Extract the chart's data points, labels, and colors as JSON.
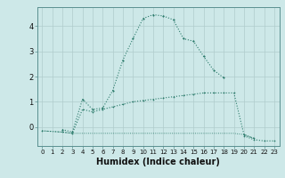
{
  "x": [
    0,
    1,
    2,
    3,
    4,
    5,
    6,
    7,
    8,
    9,
    10,
    11,
    12,
    13,
    14,
    15,
    16,
    17,
    18,
    19,
    20,
    21,
    22,
    23
  ],
  "line1": [
    null,
    null,
    -0.1,
    -0.2,
    1.1,
    0.7,
    0.75,
    1.45,
    2.65,
    3.5,
    4.3,
    4.45,
    4.4,
    4.25,
    3.5,
    3.4,
    2.8,
    2.25,
    1.95,
    null,
    null,
    null,
    null,
    null
  ],
  "line2": [
    -0.15,
    null,
    -0.2,
    -0.25,
    0.7,
    0.6,
    0.7,
    0.8,
    0.9,
    1.0,
    1.05,
    1.1,
    1.15,
    1.2,
    1.25,
    1.3,
    1.35,
    1.35,
    1.35,
    1.35,
    -0.3,
    -0.45,
    null,
    null
  ],
  "line3": [
    -0.15,
    null,
    -0.2,
    -0.25,
    -0.25,
    -0.25,
    -0.25,
    -0.25,
    -0.25,
    -0.25,
    -0.25,
    -0.25,
    -0.25,
    -0.25,
    -0.25,
    -0.25,
    -0.25,
    -0.25,
    -0.25,
    -0.25,
    -0.3,
    -0.45,
    null,
    null
  ],
  "line4": [
    null,
    null,
    null,
    null,
    null,
    null,
    null,
    null,
    null,
    null,
    null,
    null,
    null,
    null,
    null,
    null,
    null,
    null,
    null,
    null,
    -0.35,
    -0.5,
    -0.55,
    -0.55
  ],
  "bg_color": "#cde8e8",
  "grid_color": "#b0cccc",
  "line_color": "#2a7a6a",
  "xlabel": "Humidex (Indice chaleur)",
  "xlabel_fontsize": 7,
  "yticks": [
    0,
    1,
    2,
    3,
    4
  ],
  "ylim": [
    -0.75,
    4.75
  ],
  "xlim": [
    -0.5,
    23.5
  ],
  "xticks": [
    0,
    1,
    2,
    3,
    4,
    5,
    6,
    7,
    8,
    9,
    10,
    11,
    12,
    13,
    14,
    15,
    16,
    17,
    18,
    19,
    20,
    21,
    22,
    23
  ],
  "tick_fontsize": 5,
  "lw_main": 0.8,
  "ms": 1.8
}
